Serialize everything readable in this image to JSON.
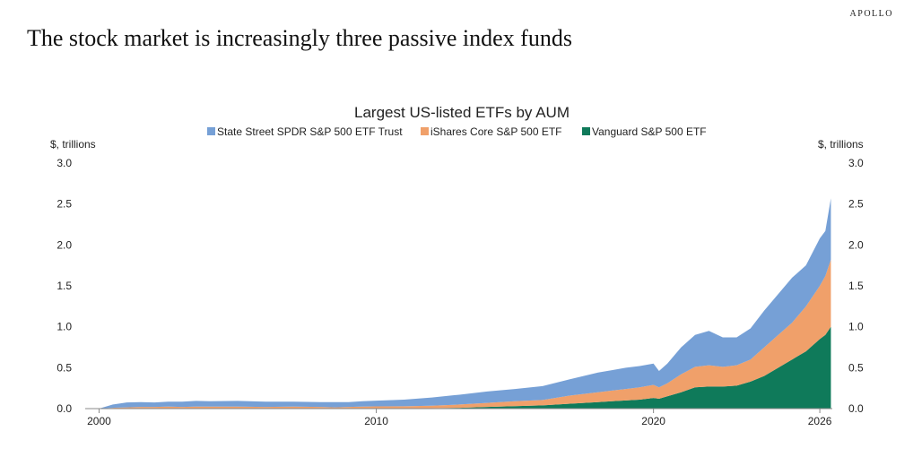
{
  "brand": "APOLLO",
  "headline": "The stock market is increasingly three passive index funds",
  "chart_data": {
    "type": "area",
    "stacked": true,
    "title": "Largest US-listed ETFs by AUM",
    "ylabel_left": "$, trillions",
    "ylabel_right": "$, trillions",
    "ylim": [
      0,
      3.0
    ],
    "yticks": [
      "0.0",
      "0.5",
      "1.0",
      "1.5",
      "2.0",
      "2.5",
      "3.0"
    ],
    "xlim": [
      1999.5,
      2026.45
    ],
    "xticks": [
      "2000",
      "2010",
      "2020",
      "2026"
    ],
    "legend_position": "top-center",
    "x": [
      2000.0,
      2000.5,
      2001.0,
      2001.5,
      2002.0,
      2002.5,
      2003.0,
      2003.5,
      2004.0,
      2005.0,
      2006.0,
      2007.0,
      2008.0,
      2008.5,
      2009.0,
      2009.5,
      2010.0,
      2011.0,
      2012.0,
      2013.0,
      2014.0,
      2015.0,
      2016.0,
      2017.0,
      2018.0,
      2018.5,
      2019.0,
      2019.5,
      2020.0,
      2020.2,
      2020.5,
      2021.0,
      2021.5,
      2022.0,
      2022.5,
      2023.0,
      2023.5,
      2024.0,
      2024.5,
      2025.0,
      2025.5,
      2026.0,
      2026.2,
      2026.4
    ],
    "series": [
      {
        "name": "Vanguard S&P 500 ETF",
        "color": "#0f7a5a",
        "values": [
          0,
          0,
          0,
          0,
          0,
          0,
          0,
          0,
          0,
          0,
          0,
          0,
          0,
          0,
          0,
          0,
          0.002,
          0.004,
          0.006,
          0.01,
          0.02,
          0.03,
          0.04,
          0.06,
          0.08,
          0.09,
          0.1,
          0.11,
          0.13,
          0.12,
          0.15,
          0.2,
          0.26,
          0.27,
          0.27,
          0.28,
          0.33,
          0.4,
          0.5,
          0.6,
          0.7,
          0.85,
          0.9,
          1.0
        ]
      },
      {
        "name": "iShares Core S&P 500 ETF",
        "color": "#f0a06a",
        "values": [
          0,
          0.01,
          0.015,
          0.02,
          0.02,
          0.025,
          0.02,
          0.025,
          0.025,
          0.025,
          0.02,
          0.025,
          0.02,
          0.015,
          0.02,
          0.025,
          0.025,
          0.025,
          0.03,
          0.04,
          0.05,
          0.06,
          0.065,
          0.1,
          0.12,
          0.13,
          0.14,
          0.15,
          0.16,
          0.14,
          0.16,
          0.22,
          0.25,
          0.26,
          0.24,
          0.25,
          0.27,
          0.35,
          0.4,
          0.45,
          0.55,
          0.65,
          0.72,
          0.82
        ]
      },
      {
        "name": "State Street SPDR S&P 500 ETF Trust",
        "color": "#76a0d6",
        "values": [
          0.0,
          0.04,
          0.06,
          0.06,
          0.055,
          0.06,
          0.065,
          0.07,
          0.065,
          0.07,
          0.065,
          0.06,
          0.06,
          0.065,
          0.06,
          0.065,
          0.07,
          0.08,
          0.1,
          0.12,
          0.14,
          0.15,
          0.17,
          0.2,
          0.24,
          0.25,
          0.26,
          0.26,
          0.26,
          0.2,
          0.24,
          0.33,
          0.39,
          0.42,
          0.36,
          0.34,
          0.38,
          0.45,
          0.5,
          0.55,
          0.5,
          0.58,
          0.55,
          0.75
        ]
      }
    ],
    "legend": [
      {
        "name": "State Street SPDR S&P 500 ETF Trust",
        "color": "#76a0d6"
      },
      {
        "name": "iShares Core S&P 500 ETF",
        "color": "#f0a06a"
      },
      {
        "name": "Vanguard S&P 500 ETF",
        "color": "#0f7a5a"
      }
    ]
  }
}
